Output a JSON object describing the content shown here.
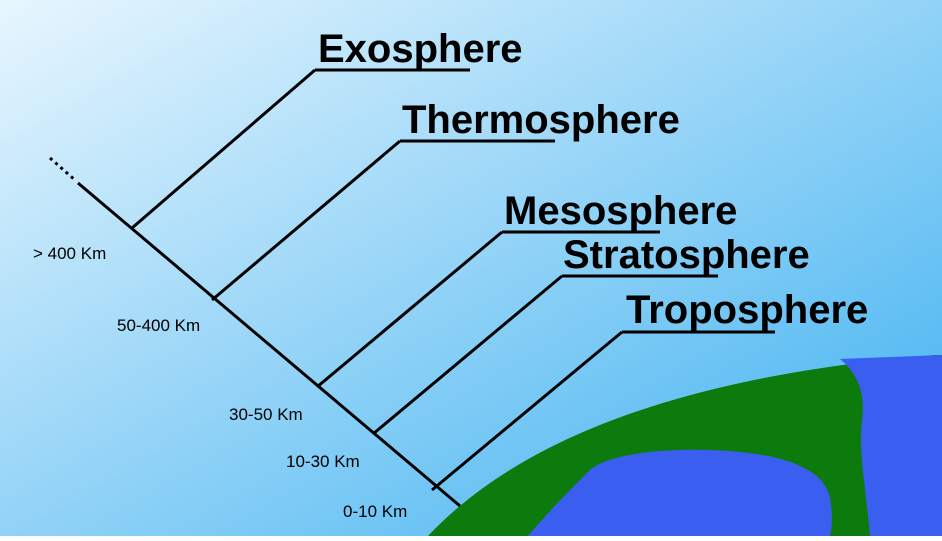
{
  "layers": [
    {
      "id": "exosphere",
      "name": "Exosphere",
      "altitude": "> 400 Km"
    },
    {
      "id": "thermosphere",
      "name": "Thermosphere",
      "altitude": "50-400 Km"
    },
    {
      "id": "mesosphere",
      "name": "Mesosphere",
      "altitude": "30-50 Km"
    },
    {
      "id": "stratosphere",
      "name": "Stratosphere",
      "altitude": "10-30 Km"
    },
    {
      "id": "troposphere",
      "name": "Troposphere",
      "altitude": "0-10 Km"
    }
  ],
  "colors": {
    "sky_light": "#e8f6fe",
    "sky_dark": "#3cb0f0",
    "land": "#0c7a0c",
    "ocean": "#3a5ef0",
    "line": "#000000"
  }
}
